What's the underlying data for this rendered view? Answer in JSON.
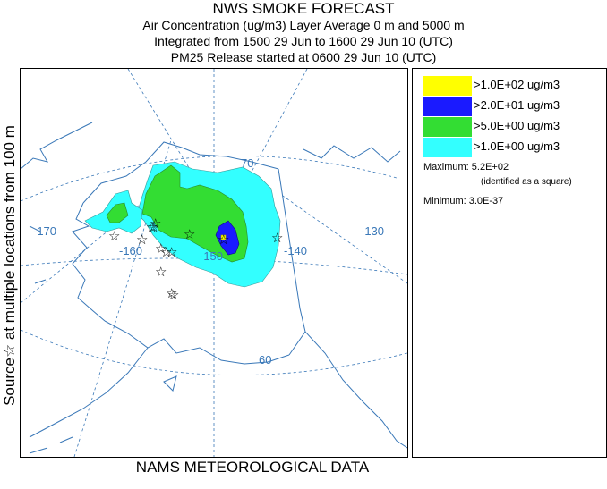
{
  "title": {
    "main": "NWS SMOKE FORECAST",
    "line1": "Air Concentration (ug/m3) Layer Average    0 m and  5000 m",
    "line2": "Integrated from 1500 29 Jun to 1600 29 Jun 10 (UTC)",
    "line3": "PM25 Release started at 0600 29 Jun 10 (UTC)"
  },
  "side_label": "Source☆  at multiple locations    from  100 m",
  "footer": "NAMS METEOROLOGICAL DATA",
  "map": {
    "graticule_labels": {
      "lat70": "70",
      "lat60": "60",
      "lon170": "-170",
      "lon160": "-160",
      "lon150": "-150",
      "lon140": "-140",
      "lon130": "-130"
    },
    "source_marker": "☆",
    "source_count": 14,
    "colors": {
      "level1": "#33ffff",
      "level2": "#33dd33",
      "level3": "#1a1aff",
      "level4": "#ffff00",
      "coast": "#3a78b8",
      "grid": "#3a78b8"
    }
  },
  "legend": {
    "items": [
      {
        "label": ">1.0E+02 ug/m3",
        "color": "#ffff00"
      },
      {
        "label": ">2.0E+01 ug/m3",
        "color": "#1a1aff"
      },
      {
        "label": ">5.0E+00 ug/m3",
        "color": "#33dd33"
      },
      {
        "label": ">1.0E+00 ug/m3",
        "color": "#33ffff"
      }
    ],
    "maximum": "Maximum: 5.2E+02",
    "max_note": "(identified as a square)",
    "minimum": "Minimum: 3.0E-37"
  }
}
